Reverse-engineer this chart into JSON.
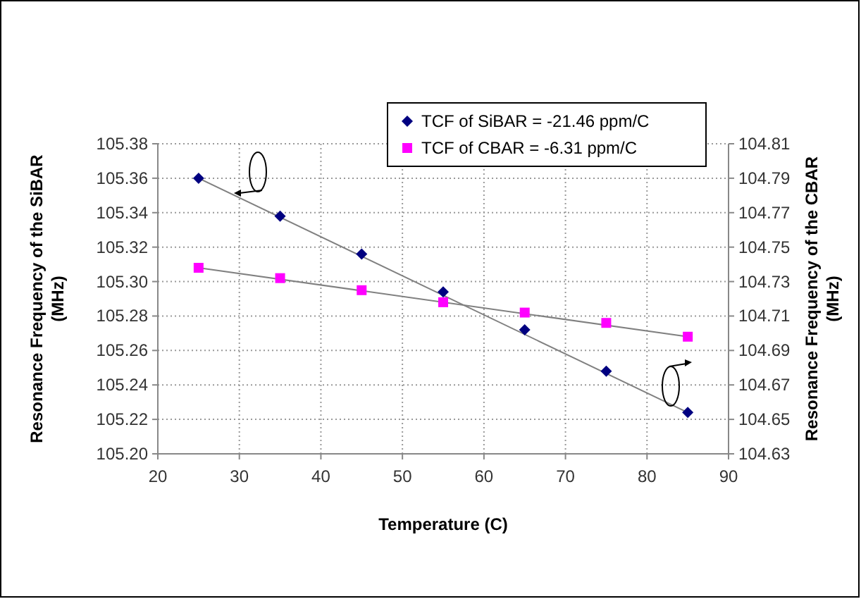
{
  "chart_data": {
    "type": "scatter",
    "xlabel": "Temperature (C)",
    "ylabel": "Resonance Frequency of the SiBAR\n(MHz)",
    "y2label": "Resonance Frequency of the CBAR\n(MHz)",
    "xlim": [
      20,
      90
    ],
    "xticks": [
      20,
      30,
      40,
      50,
      60,
      70,
      80,
      90
    ],
    "ylim": [
      105.2,
      105.38
    ],
    "yticks": [
      {
        "value": 105.2,
        "label": "105.20"
      },
      105.22,
      105.24,
      105.26,
      105.28,
      {
        "value": 105.3,
        "label": "105.30"
      },
      105.32,
      105.34,
      105.36,
      105.38
    ],
    "y2lim": [
      104.63,
      104.81
    ],
    "y2ticks": [
      104.63,
      104.65,
      104.67,
      104.69,
      104.71,
      104.73,
      104.75,
      104.77,
      104.79,
      104.81
    ],
    "grid": true,
    "legend": "top right",
    "series": [
      {
        "name": "TCF of SiBAR = -21.46 ppm/C",
        "marker": "diamond",
        "color": "#000080",
        "x": [
          25,
          35,
          45,
          55,
          65,
          75,
          85
        ],
        "values": [
          105.36,
          105.338,
          105.316,
          105.294,
          105.272,
          105.248,
          105.224
        ]
      },
      {
        "name": "TCF of CBAR = -6.31 ppm/C",
        "marker": "square",
        "color": "#ff00ff",
        "axis": "y2",
        "x": [
          25,
          35,
          45,
          55,
          65,
          75,
          85
        ],
        "values": [
          104.738,
          104.732,
          104.725,
          104.718,
          104.712,
          104.706,
          104.698
        ]
      },
      {
        "type": "line",
        "color": "#808080",
        "x": [
          25,
          85
        ],
        "values": [
          105.36,
          105.224
        ]
      },
      {
        "type": "line",
        "color": "#808080",
        "axis": "y2",
        "x": [
          25,
          85
        ],
        "values": [
          104.738,
          104.698
        ]
      }
    ]
  }
}
